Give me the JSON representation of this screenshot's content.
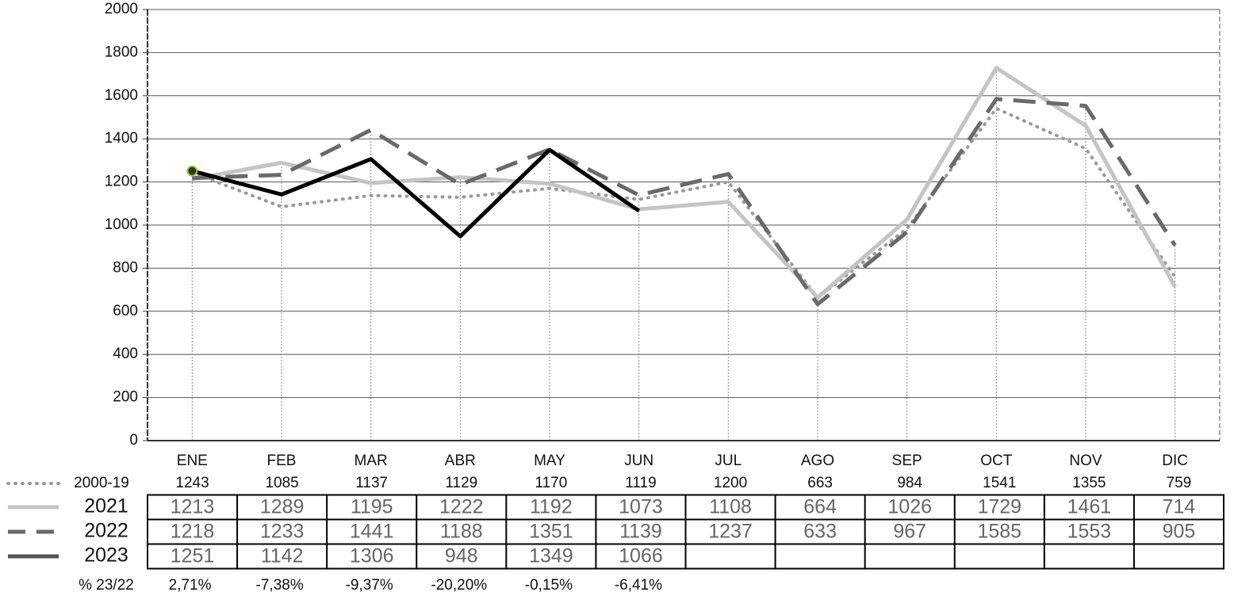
{
  "chart_data": {
    "type": "line",
    "categories": [
      "ENE",
      "FEB",
      "MAR",
      "ABR",
      "MAY",
      "JUN",
      "JUL",
      "AGO",
      "SEP",
      "OCT",
      "NOV",
      "DIC"
    ],
    "ylim": [
      0,
      2000
    ],
    "yticks": [
      0,
      200,
      400,
      600,
      800,
      1000,
      1200,
      1400,
      1600,
      1800,
      2000
    ],
    "grid": true,
    "series": [
      {
        "name": "2000-19",
        "color": "#999999",
        "style": "dotted",
        "values": [
          1243,
          1085,
          1137,
          1129,
          1170,
          1119,
          1200,
          663,
          984,
          1541,
          1355,
          759
        ]
      },
      {
        "name": "2021",
        "color": "#c4c4c4",
        "style": "solid",
        "values": [
          1213,
          1289,
          1195,
          1222,
          1192,
          1073,
          1108,
          664,
          1026,
          1729,
          1461,
          714
        ]
      },
      {
        "name": "2022",
        "color": "#6a6a6a",
        "style": "dashed",
        "values": [
          1218,
          1233,
          1441,
          1188,
          1351,
          1139,
          1237,
          633,
          967,
          1585,
          1553,
          905
        ]
      },
      {
        "name": "2023",
        "color": "#000000",
        "style": "solid",
        "values": [
          1251,
          1142,
          1306,
          948,
          1349,
          1066,
          null,
          null,
          null,
          null,
          null,
          null
        ]
      }
    ],
    "change_row": {
      "label": "% 23/22",
      "values": [
        "2,71%",
        "-7,38%",
        "-9,37%",
        "-20,20%",
        "-0,15%",
        "-6,41%"
      ]
    }
  }
}
